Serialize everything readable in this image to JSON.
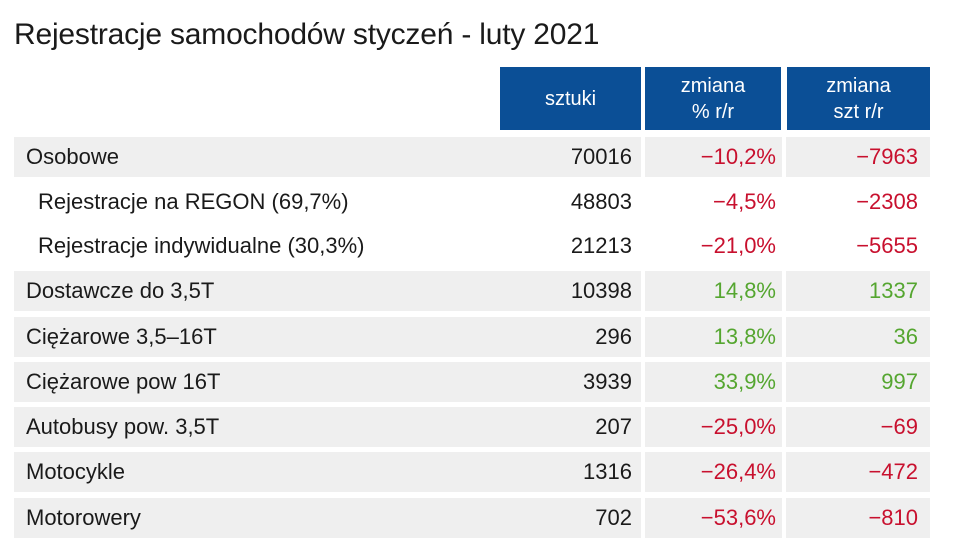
{
  "title": "Rejestracje samochodów styczeń - luty 2021",
  "headers": {
    "col1": [
      "sztuki"
    ],
    "col2": [
      "zmiana",
      "% r/r"
    ],
    "col3": [
      "zmiana",
      "szt r/r"
    ]
  },
  "rows": [
    {
      "label": "Osobowe",
      "sztuki": "70016",
      "pct": "−10,2%",
      "szt": "−7963",
      "trend": "neg",
      "indent": false,
      "shaded": true
    },
    {
      "label": "Rejestracje na REGON (69,7%)",
      "sztuki": "48803",
      "pct": "−4,5%",
      "szt": "−2308",
      "trend": "neg",
      "indent": true,
      "shaded": false
    },
    {
      "label": "Rejestracje indywidualne (30,3%)",
      "sztuki": "21213",
      "pct": "−21,0%",
      "szt": "−5655",
      "trend": "neg",
      "indent": true,
      "shaded": false
    },
    {
      "label": "Dostawcze do 3,5T",
      "sztuki": "10398",
      "pct": "14,8%",
      "szt": "1337",
      "trend": "pos",
      "indent": false,
      "shaded": true
    },
    {
      "label": "Ciężarowe 3,5–16T",
      "sztuki": "296",
      "pct": "13,8%",
      "szt": "36",
      "trend": "pos",
      "indent": false,
      "shaded": true
    },
    {
      "label": "Ciężarowe pow 16T",
      "sztuki": "3939",
      "pct": "33,9%",
      "szt": "997",
      "trend": "pos",
      "indent": false,
      "shaded": true
    },
    {
      "label": "Autobusy pow. 3,5T",
      "sztuki": "207",
      "pct": "−25,0%",
      "szt": "−69",
      "trend": "neg",
      "indent": false,
      "shaded": true
    },
    {
      "label": "Motocykle",
      "sztuki": "1316",
      "pct": "−26,4%",
      "szt": "−472",
      "trend": "neg",
      "indent": false,
      "shaded": true
    },
    {
      "label": "Motorowery",
      "sztuki": "702",
      "pct": "−53,6%",
      "szt": "−810",
      "trend": "neg",
      "indent": false,
      "shaded": true
    }
  ],
  "colors": {
    "header_bg": "#0b4f96",
    "negative": "#c8102e",
    "positive": "#55a630",
    "row_shade": "#efefef"
  }
}
